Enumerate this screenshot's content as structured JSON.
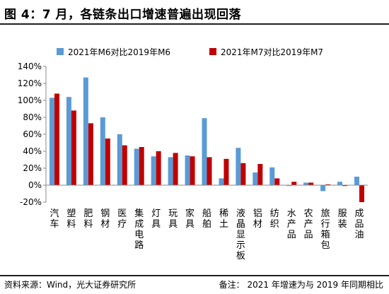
{
  "header": {
    "title": "图 4：7 月，各链条出口增速普遍出现回落"
  },
  "footer": {
    "source": "资料来源：Wind，光大证券研究所",
    "note": "备注：   2021 年增速为与 2019 年同期相比"
  },
  "chart_data": {
    "type": "bar",
    "categories": [
      "汽车",
      "塑料",
      "肥料",
      "钢材",
      "医疗",
      "集成电路",
      "灯具",
      "玩具",
      "家具",
      "船舶",
      "稀土",
      "液晶显示板",
      "铝材",
      "纺织",
      "水产品",
      "农产品",
      "旅行箱包",
      "服装",
      "成品油"
    ],
    "series": [
      {
        "name": "2021年M6对比2019年M6",
        "color": "#5b9bd5",
        "values": [
          103,
          104,
          127,
          80,
          60,
          43,
          34,
          33,
          35,
          79,
          8,
          44,
          15,
          21,
          -1,
          3,
          -7,
          4,
          10
        ]
      },
      {
        "name": "2021年M7对比2019年M7",
        "color": "#c00000",
        "values": [
          108,
          88,
          73,
          55,
          47,
          45,
          40,
          38,
          34,
          33,
          31,
          26,
          25,
          8,
          4,
          3,
          1,
          -1,
          -20
        ]
      }
    ],
    "ylim": [
      -20,
      140
    ],
    "yticks": [
      -20,
      0,
      20,
      40,
      60,
      80,
      100,
      120,
      140
    ],
    "ytick_format": "percent",
    "grid": false,
    "legend": "top"
  }
}
